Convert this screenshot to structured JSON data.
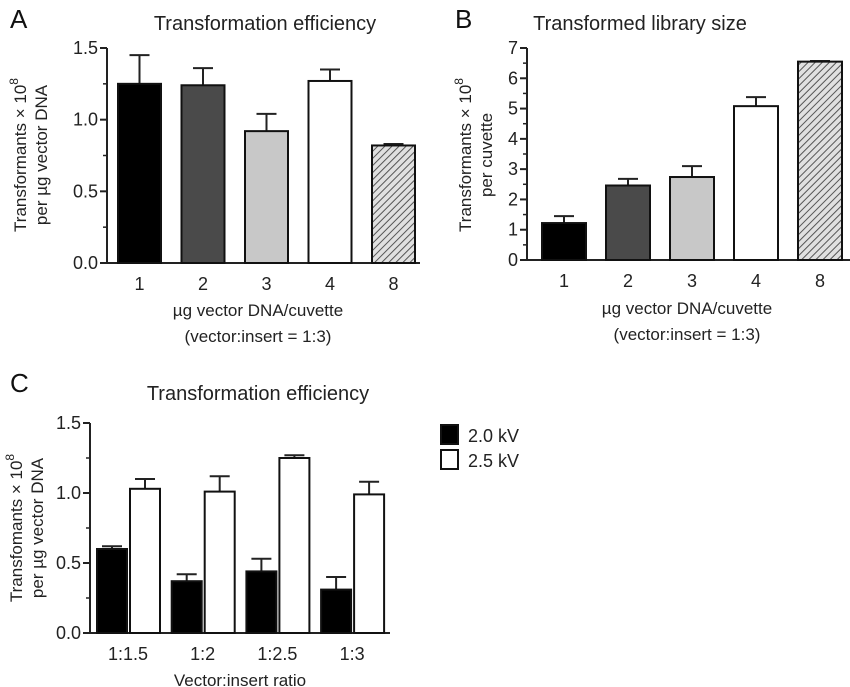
{
  "chart_data": [
    {
      "panel": "A",
      "type": "bar",
      "title": "Transformation efficiency",
      "ylabel": [
        "Transformants × 10",
        "8",
        "per µg vector DNA"
      ],
      "xlabel": [
        "µg vector DNA/cuvette",
        "(vector:insert = 1:3)"
      ],
      "categories": [
        "1",
        "2",
        "3",
        "4",
        "8"
      ],
      "values": [
        1.25,
        1.24,
        0.92,
        1.27,
        0.82
      ],
      "error_upper": [
        1.45,
        1.36,
        1.04,
        1.35,
        0.83
      ],
      "fills": [
        "#000000",
        "#4a4a4a",
        "#c8c8c8",
        "#ffffff",
        "hatch"
      ],
      "ylim": [
        0,
        1.5
      ],
      "yticks": [
        "0.0",
        "0.5",
        "1.0",
        "1.5"
      ],
      "ytick_values": [
        0,
        0.5,
        1.0,
        1.5
      ],
      "grid": false
    },
    {
      "panel": "B",
      "type": "bar",
      "title": "Transformed library size",
      "ylabel": [
        "Transformants × 10",
        "8",
        "per cuvette"
      ],
      "xlabel": [
        "µg vector DNA/cuvette",
        "(vector:insert = 1:3)"
      ],
      "categories": [
        "1",
        "2",
        "3",
        "4",
        "8"
      ],
      "values": [
        1.22,
        2.46,
        2.74,
        5.08,
        6.55
      ],
      "error_upper": [
        1.45,
        2.68,
        3.1,
        5.38,
        6.57
      ],
      "fills": [
        "#000000",
        "#4a4a4a",
        "#c8c8c8",
        "#ffffff",
        "hatch"
      ],
      "ylim": [
        0,
        7
      ],
      "yticks": [
        "0",
        "1",
        "2",
        "3",
        "4",
        "5",
        "6",
        "7"
      ],
      "ytick_values": [
        0,
        1,
        2,
        3,
        4,
        5,
        6,
        7
      ],
      "grid": false
    },
    {
      "panel": "C",
      "type": "bar",
      "title": "Transformation efficiency",
      "ylabel": [
        "Transfomants × 10",
        "8",
        "per µg vector DNA"
      ],
      "xlabel": [
        "Vector:insert ratio"
      ],
      "categories": [
        "1:1.5",
        "1:2",
        "1:2.5",
        "1:3"
      ],
      "series": [
        {
          "name": "2.0 kV",
          "color": "#000000",
          "values": [
            0.6,
            0.37,
            0.44,
            0.31
          ],
          "error_upper": [
            0.62,
            0.42,
            0.53,
            0.4
          ]
        },
        {
          "name": "2.5 kV",
          "color": "#ffffff",
          "values": [
            1.03,
            1.01,
            1.25,
            0.99
          ],
          "error_upper": [
            1.1,
            1.12,
            1.27,
            1.08
          ]
        }
      ],
      "ylim": [
        0,
        1.5
      ],
      "yticks": [
        "0.0",
        "0.5",
        "1.0",
        "1.5"
      ],
      "ytick_values": [
        0,
        0.5,
        1.0,
        1.5
      ],
      "legend": "right",
      "grid": false
    }
  ]
}
